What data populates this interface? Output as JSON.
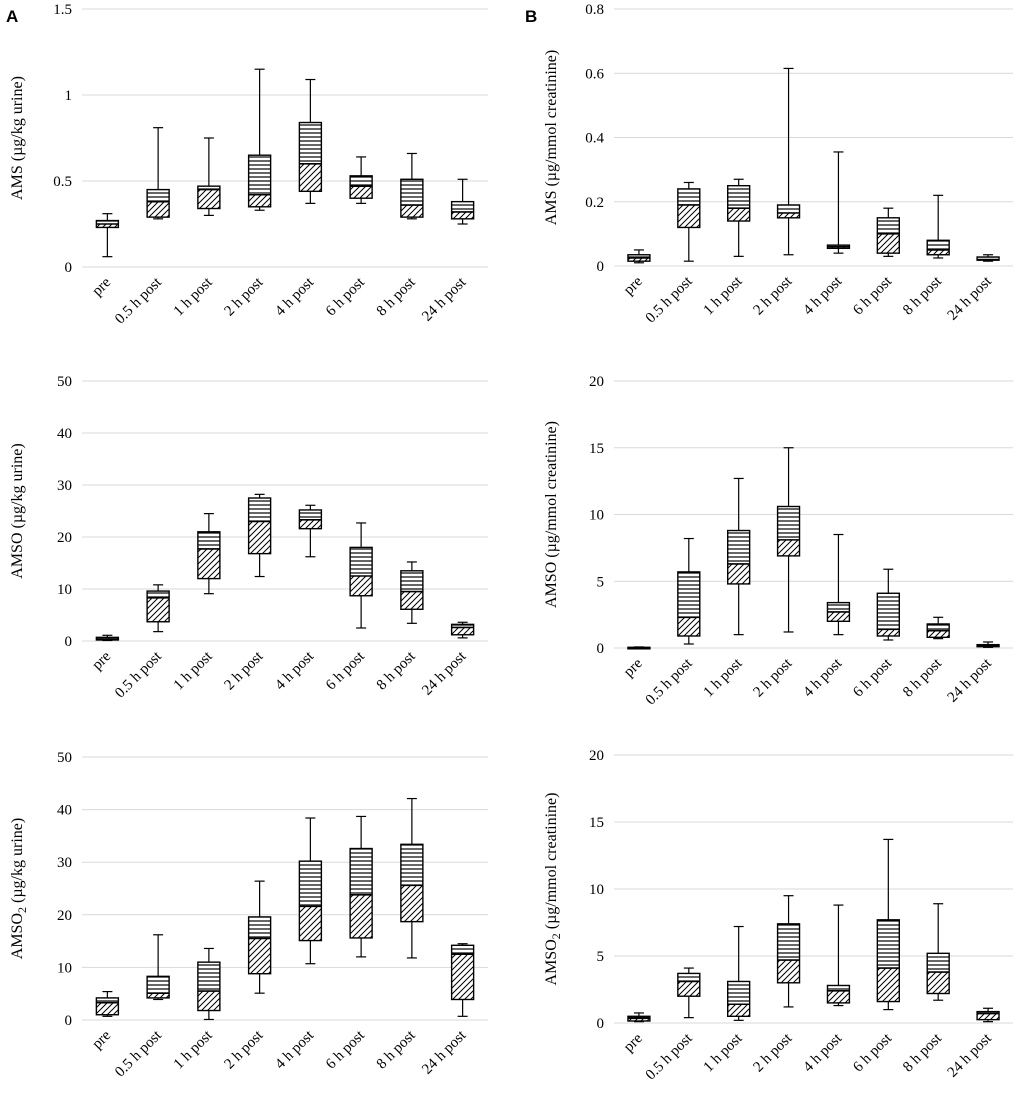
{
  "panel_labels": {
    "A": "A",
    "B": "B"
  },
  "legend_patterns": {
    "lower_quartile": "diagonal-hatch",
    "upper_quartile": "horizontal-stripes"
  },
  "chart_data": [
    {
      "id": "c0",
      "column": "A",
      "row": 0,
      "type": "box",
      "ylabel_main": "AMS (µg/kg urine)",
      "ylabel_sub": "",
      "ylim": [
        0,
        1.5
      ],
      "ticks": [
        0,
        0.5,
        1,
        1.5
      ],
      "tick_labels": [
        "0",
        "0.5",
        "1",
        "1.5"
      ],
      "categories": [
        "pre",
        "0.5 h post",
        "1 h post",
        "2 h post",
        "4 h post",
        "6 h post",
        "8 h post",
        "24 h post"
      ],
      "boxes": [
        {
          "min": 0.06,
          "q1": 0.23,
          "median": 0.25,
          "q3": 0.27,
          "max": 0.31
        },
        {
          "min": 0.28,
          "q1": 0.29,
          "median": 0.38,
          "q3": 0.45,
          "max": 0.81
        },
        {
          "min": 0.3,
          "q1": 0.34,
          "median": 0.45,
          "q3": 0.47,
          "max": 0.75
        },
        {
          "min": 0.33,
          "q1": 0.35,
          "median": 0.42,
          "q3": 0.65,
          "max": 1.15
        },
        {
          "min": 0.37,
          "q1": 0.44,
          "median": 0.6,
          "q3": 0.84,
          "max": 1.09
        },
        {
          "min": 0.37,
          "q1": 0.4,
          "median": 0.47,
          "q3": 0.53,
          "max": 0.64
        },
        {
          "min": 0.28,
          "q1": 0.29,
          "median": 0.36,
          "q3": 0.51,
          "max": 0.66
        },
        {
          "min": 0.25,
          "q1": 0.28,
          "median": 0.32,
          "q3": 0.38,
          "max": 0.51
        }
      ]
    },
    {
      "id": "c1",
      "column": "B",
      "row": 0,
      "type": "box",
      "ylabel_main": "AMS (µg/mmol creatinine)",
      "ylabel_sub": "",
      "ylim": [
        0,
        0.8
      ],
      "ticks": [
        0,
        0.2,
        0.4,
        0.6,
        0.8
      ],
      "tick_labels": [
        "0",
        "0.2",
        "0.4",
        "0.6",
        "0.8"
      ],
      "categories": [
        "pre",
        "0.5 h post",
        "1 h post",
        "2 h post",
        "4 h post",
        "6 h post",
        "8 h post",
        "24 h post"
      ],
      "boxes": [
        {
          "min": 0.01,
          "q1": 0.015,
          "median": 0.025,
          "q3": 0.035,
          "max": 0.05
        },
        {
          "min": 0.015,
          "q1": 0.12,
          "median": 0.19,
          "q3": 0.24,
          "max": 0.26
        },
        {
          "min": 0.03,
          "q1": 0.14,
          "median": 0.18,
          "q3": 0.25,
          "max": 0.27
        },
        {
          "min": 0.035,
          "q1": 0.15,
          "median": 0.165,
          "q3": 0.19,
          "max": 0.615
        },
        {
          "min": 0.04,
          "q1": 0.055,
          "median": 0.06,
          "q3": 0.065,
          "max": 0.355
        },
        {
          "min": 0.03,
          "q1": 0.04,
          "median": 0.1,
          "q3": 0.15,
          "max": 0.18
        },
        {
          "min": 0.025,
          "q1": 0.035,
          "median": 0.05,
          "q3": 0.08,
          "max": 0.22
        },
        {
          "min": 0.015,
          "q1": 0.018,
          "median": 0.02,
          "q3": 0.028,
          "max": 0.035
        }
      ]
    },
    {
      "id": "c2",
      "column": "A",
      "row": 1,
      "type": "box",
      "ylabel_main": "AMSO (µg/kg urine)",
      "ylabel_sub": "",
      "ylim": [
        0,
        50
      ],
      "ticks": [
        0,
        10,
        20,
        30,
        40,
        50
      ],
      "tick_labels": [
        "0",
        "10",
        "20",
        "30",
        "40",
        "50"
      ],
      "categories": [
        "pre",
        "0.5 h post",
        "1 h post",
        "2 h post",
        "4 h post",
        "6 h post",
        "8 h post",
        "24 h post"
      ],
      "boxes": [
        {
          "min": 0.1,
          "q1": 0.2,
          "median": 0.4,
          "q3": 0.7,
          "max": 1.1
        },
        {
          "min": 1.8,
          "q1": 3.7,
          "median": 8.3,
          "q3": 9.6,
          "max": 10.8
        },
        {
          "min": 9.1,
          "q1": 12.0,
          "median": 17.7,
          "q3": 21.0,
          "max": 24.5
        },
        {
          "min": 12.4,
          "q1": 16.8,
          "median": 23.0,
          "q3": 27.5,
          "max": 28.2
        },
        {
          "min": 16.2,
          "q1": 21.6,
          "median": 23.3,
          "q3": 25.2,
          "max": 26.1
        },
        {
          "min": 2.5,
          "q1": 8.7,
          "median": 12.5,
          "q3": 18.0,
          "max": 22.7
        },
        {
          "min": 3.4,
          "q1": 6.1,
          "median": 9.5,
          "q3": 13.5,
          "max": 15.2
        },
        {
          "min": 0.6,
          "q1": 1.2,
          "median": 2.6,
          "q3": 3.2,
          "max": 3.6
        }
      ]
    },
    {
      "id": "c3",
      "column": "B",
      "row": 1,
      "type": "box",
      "ylabel_main": "AMSO (µg/mmol creatinine)",
      "ylabel_sub": "",
      "ylim": [
        0,
        20
      ],
      "ticks": [
        0,
        5,
        10,
        15,
        20
      ],
      "tick_labels": [
        "0",
        "5",
        "10",
        "15",
        "20"
      ],
      "categories": [
        "pre",
        "0.5 h post",
        "1 h post",
        "2 h post",
        "4 h post",
        "6 h post",
        "8 h post",
        "24 h post"
      ],
      "boxes": [
        {
          "min": 0.0,
          "q1": 0.0,
          "median": 0.02,
          "q3": 0.05,
          "max": 0.08
        },
        {
          "min": 0.3,
          "q1": 0.9,
          "median": 2.3,
          "q3": 5.7,
          "max": 8.2
        },
        {
          "min": 1.0,
          "q1": 4.8,
          "median": 6.3,
          "q3": 8.8,
          "max": 12.7
        },
        {
          "min": 1.2,
          "q1": 6.9,
          "median": 8.1,
          "q3": 10.6,
          "max": 15.0
        },
        {
          "min": 1.0,
          "q1": 2.0,
          "median": 2.7,
          "q3": 3.4,
          "max": 8.5
        },
        {
          "min": 0.6,
          "q1": 0.9,
          "median": 1.4,
          "q3": 4.1,
          "max": 5.9
        },
        {
          "min": 0.7,
          "q1": 0.8,
          "median": 1.3,
          "q3": 1.8,
          "max": 2.3
        },
        {
          "min": 0.05,
          "q1": 0.1,
          "median": 0.15,
          "q3": 0.25,
          "max": 0.45
        }
      ]
    },
    {
      "id": "c4",
      "column": "A",
      "row": 2,
      "type": "box",
      "ylabel_main": "AMSO",
      "ylabel_sub": "2",
      "ylabel_tail": " (µg/kg urine)",
      "ylim": [
        0,
        50
      ],
      "ticks": [
        0,
        10,
        20,
        30,
        40,
        50
      ],
      "tick_labels": [
        "0",
        "10",
        "20",
        "30",
        "40",
        "50"
      ],
      "categories": [
        "pre",
        "0.5 h post",
        "1 h post",
        "2 h post",
        "4 h post",
        "6 h post",
        "8 h post",
        "24 h post"
      ],
      "boxes": [
        {
          "min": 0.7,
          "q1": 1.0,
          "median": 3.3,
          "q3": 4.2,
          "max": 5.4
        },
        {
          "min": 3.9,
          "q1": 4.2,
          "median": 5.1,
          "q3": 8.3,
          "max": 16.2
        },
        {
          "min": 0.1,
          "q1": 1.8,
          "median": 5.5,
          "q3": 11.0,
          "max": 13.6
        },
        {
          "min": 5.1,
          "q1": 8.8,
          "median": 15.5,
          "q3": 19.6,
          "max": 26.4
        },
        {
          "min": 10.7,
          "q1": 15.1,
          "median": 21.6,
          "q3": 30.2,
          "max": 38.4
        },
        {
          "min": 12.0,
          "q1": 15.6,
          "median": 23.8,
          "q3": 32.6,
          "max": 38.7
        },
        {
          "min": 11.8,
          "q1": 18.7,
          "median": 25.6,
          "q3": 33.4,
          "max": 42.1
        },
        {
          "min": 0.7,
          "q1": 3.9,
          "median": 12.5,
          "q3": 14.2,
          "max": 14.5
        }
      ]
    },
    {
      "id": "c5",
      "column": "B",
      "row": 2,
      "type": "box",
      "ylabel_main": "AMSO",
      "ylabel_sub": "2",
      "ylabel_tail": " (µg/mmol creatinine)",
      "ylim": [
        0,
        20
      ],
      "ticks": [
        0,
        5,
        10,
        15,
        20
      ],
      "tick_labels": [
        "0",
        "5",
        "10",
        "15",
        "20"
      ],
      "categories": [
        "pre",
        "0.5 h post",
        "1 h post",
        "2 h post",
        "4 h post",
        "6 h post",
        "8 h post",
        "24 h post"
      ],
      "boxes": [
        {
          "min": 0.1,
          "q1": 0.15,
          "median": 0.35,
          "q3": 0.5,
          "max": 0.75
        },
        {
          "min": 0.4,
          "q1": 2.0,
          "median": 3.1,
          "q3": 3.7,
          "max": 4.1
        },
        {
          "min": 0.2,
          "q1": 0.5,
          "median": 1.4,
          "q3": 3.1,
          "max": 7.2
        },
        {
          "min": 1.2,
          "q1": 3.0,
          "median": 4.7,
          "q3": 7.4,
          "max": 9.5
        },
        {
          "min": 1.3,
          "q1": 1.5,
          "median": 2.4,
          "q3": 2.8,
          "max": 8.8
        },
        {
          "min": 1.0,
          "q1": 1.6,
          "median": 4.1,
          "q3": 7.7,
          "max": 13.7
        },
        {
          "min": 1.7,
          "q1": 2.2,
          "median": 3.8,
          "q3": 5.2,
          "max": 8.9
        },
        {
          "min": 0.1,
          "q1": 0.25,
          "median": 0.7,
          "q3": 0.85,
          "max": 1.1
        }
      ]
    }
  ]
}
